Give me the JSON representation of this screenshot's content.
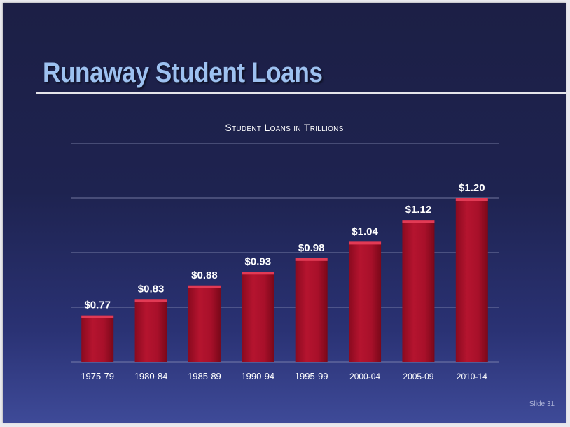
{
  "slide": {
    "title": "Runaway Student Loans",
    "slide_number": "Slide 31"
  },
  "colors": {
    "title": "#9dc1f0",
    "bar": "#b0102a",
    "bar_top": "#e23a55",
    "gridline": "#8e93b8",
    "text": "#ffffff"
  },
  "chart_data": {
    "type": "bar",
    "title": "Student Loans in Trillions",
    "xlabel": "",
    "ylabel": "",
    "categories": [
      "1975-79",
      "1980-84",
      "1985-89",
      "1990-94",
      "1995-99",
      "2000-04",
      "2005-09",
      "2010-14"
    ],
    "values": [
      0.77,
      0.83,
      0.88,
      0.93,
      0.98,
      1.04,
      1.12,
      1.2
    ],
    "data_labels": [
      "$0.77",
      "$0.83",
      "$0.88",
      "$0.93",
      "$0.98",
      "$1.04",
      "$1.12",
      "$1.20"
    ],
    "ylim": [
      0.6,
      1.4
    ],
    "yticks": [
      0.6,
      0.8,
      1.0,
      1.2,
      1.4
    ],
    "show_y_tick_labels": false,
    "grid": true,
    "legend": "none"
  }
}
